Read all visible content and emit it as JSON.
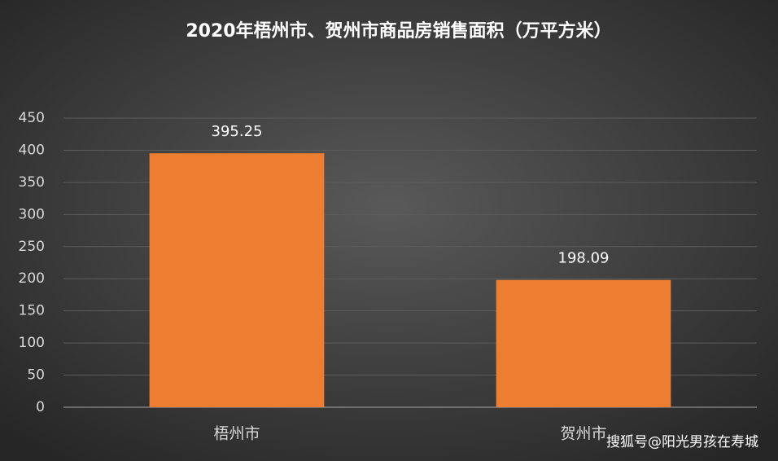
{
  "chart_data": {
    "type": "bar",
    "title": "2020年梧州市、贺州市商品房销售面积（万平方米）",
    "categories": [
      "梧州市",
      "贺州市"
    ],
    "values": [
      395.25,
      198.09
    ],
    "color": "#ed7d31",
    "ylim": [
      0,
      450
    ],
    "yticks": [
      0,
      50,
      100,
      150,
      200,
      250,
      300,
      350,
      400,
      450
    ],
    "grid": true,
    "data_labels": true
  },
  "watermark": "搜狐号@阳光男孩在寿城"
}
